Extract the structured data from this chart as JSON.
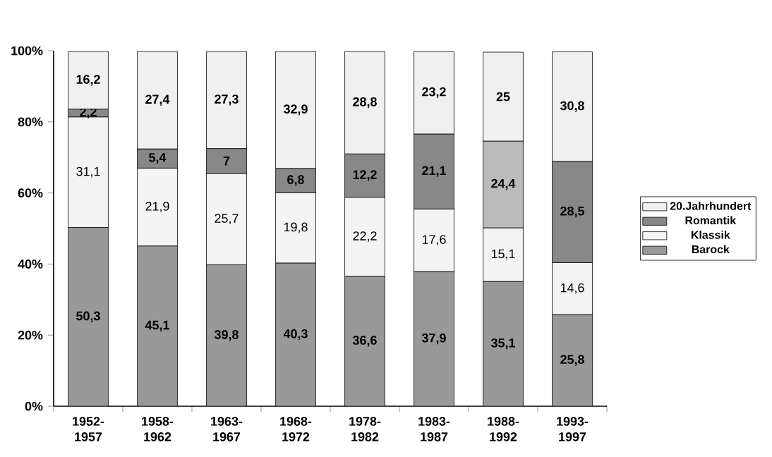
{
  "chart_data": {
    "type": "bar",
    "stacked": true,
    "categories": [
      "1952-1957",
      "1958-1962",
      "1963-1967",
      "1968-1972",
      "1978-1982",
      "1983-1987",
      "1988-1992",
      "1993-1997"
    ],
    "series": [
      {
        "name": "Barock",
        "color": "#999999",
        "values": [
          50.3,
          45.1,
          39.8,
          40.3,
          36.6,
          37.9,
          35.1,
          25.8
        ],
        "value_labels": [
          "50,3",
          "45,1",
          "39,8",
          "40,3",
          "36,6",
          "37,9",
          "35,1",
          "25,8"
        ]
      },
      {
        "name": "Klassik",
        "color": "#f4f4f4",
        "values": [
          31.1,
          21.9,
          25.7,
          19.8,
          22.2,
          17.6,
          15.1,
          14.6
        ],
        "value_labels": [
          "31,1",
          "21,9",
          "25,7",
          "19,8",
          "22,2",
          "17,6",
          "15,1",
          "14,6"
        ]
      },
      {
        "name": "Romantik",
        "color": "#888888",
        "colors": [
          "#888888",
          "#888888",
          "#888888",
          "#888888",
          "#888888",
          "#888888",
          "#bbbbbb",
          "#888888"
        ],
        "values": [
          2.2,
          5.4,
          7,
          6.8,
          12.2,
          21.1,
          24.4,
          28.5
        ],
        "value_labels": [
          "2,2",
          "5,4",
          "7",
          "6,8",
          "12,2",
          "21,1",
          "24,4",
          "28,5"
        ]
      },
      {
        "name": "20.Jahrhundert",
        "color": "#f0f0f0",
        "values": [
          16.2,
          27.4,
          27.3,
          32.9,
          28.8,
          23.2,
          25,
          30.8
        ],
        "value_labels": [
          "16,2",
          "27,4",
          "27,3",
          "32,9",
          "28,8",
          "23,2",
          "25",
          "30,8"
        ]
      }
    ],
    "ylim": [
      0,
      100
    ],
    "yticks": [
      {
        "value": 0,
        "label": "0%"
      },
      {
        "value": 20,
        "label": "20%"
      },
      {
        "value": 40,
        "label": "40%"
      },
      {
        "value": 60,
        "label": "60%"
      },
      {
        "value": 80,
        "label": "80%"
      },
      {
        "value": 100,
        "label": "100%"
      }
    ],
    "legend": "right",
    "grid": false
  }
}
